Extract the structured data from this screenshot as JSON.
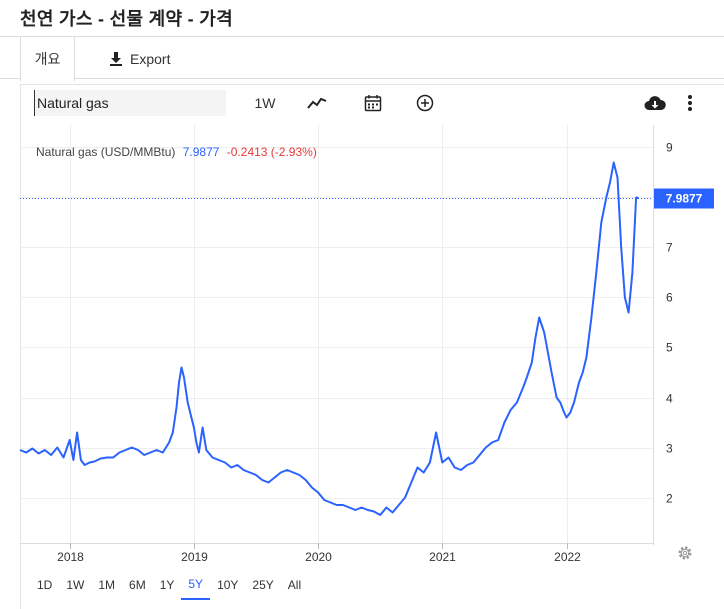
{
  "page": {
    "title": "천연 가스 - 선물 계약 - 가격"
  },
  "tabs": {
    "overview": "개요",
    "export": "Export"
  },
  "toolbar": {
    "search_value": "Natural gas",
    "interval": "1W",
    "icons": [
      "line-chart-icon",
      "calendar-icon",
      "add-circle-icon",
      "cloud-download-icon",
      "more-vert-icon"
    ]
  },
  "legend": {
    "name": "Natural gas (USD/MMBtu)",
    "last": "7.9877",
    "change": "-0.2413 (-2.93%)"
  },
  "ranges": [
    "1D",
    "1W",
    "1M",
    "6M",
    "1Y",
    "5Y",
    "10Y",
    "25Y",
    "All"
  ],
  "active_range": "5Y",
  "colors": {
    "line": "#2962ff",
    "negative": "#e53935",
    "badge": "#2962ff"
  },
  "chart_data": {
    "type": "line",
    "series": [
      {
        "name": "Natural gas (USD/MMBtu)",
        "x": [
          2017.6,
          2017.65,
          2017.7,
          2017.75,
          2017.8,
          2017.85,
          2017.9,
          2017.95,
          2018.0,
          2018.03,
          2018.06,
          2018.09,
          2018.12,
          2018.16,
          2018.2,
          2018.25,
          2018.3,
          2018.35,
          2018.4,
          2018.45,
          2018.5,
          2018.55,
          2018.6,
          2018.65,
          2018.7,
          2018.75,
          2018.8,
          2018.83,
          2018.86,
          2018.88,
          2018.9,
          2018.92,
          2018.95,
          2018.98,
          2019.0,
          2019.02,
          2019.04,
          2019.07,
          2019.1,
          2019.15,
          2019.2,
          2019.25,
          2019.3,
          2019.35,
          2019.4,
          2019.45,
          2019.5,
          2019.55,
          2019.6,
          2019.65,
          2019.7,
          2019.75,
          2019.8,
          2019.85,
          2019.9,
          2019.95,
          2020.0,
          2020.05,
          2020.1,
          2020.15,
          2020.2,
          2020.25,
          2020.3,
          2020.35,
          2020.4,
          2020.45,
          2020.5,
          2020.55,
          2020.6,
          2020.65,
          2020.7,
          2020.75,
          2020.8,
          2020.85,
          2020.9,
          2020.95,
          2021.0,
          2021.05,
          2021.1,
          2021.15,
          2021.2,
          2021.25,
          2021.3,
          2021.35,
          2021.4,
          2021.45,
          2021.5,
          2021.55,
          2021.6,
          2021.65,
          2021.68,
          2021.72,
          2021.75,
          2021.78,
          2021.82,
          2021.85,
          2021.88,
          2021.92,
          2021.95,
          2021.98,
          2022.0,
          2022.03,
          2022.06,
          2022.1,
          2022.13,
          2022.16,
          2022.2,
          2022.24,
          2022.28,
          2022.32,
          2022.35,
          2022.38,
          2022.41,
          2022.44,
          2022.47,
          2022.5,
          2022.53,
          2022.56,
          2022.58
        ],
        "values": [
          2.95,
          2.9,
          2.98,
          2.88,
          2.95,
          2.85,
          3.0,
          2.8,
          3.15,
          2.75,
          3.3,
          2.75,
          2.65,
          2.7,
          2.72,
          2.78,
          2.8,
          2.8,
          2.9,
          2.95,
          3.0,
          2.95,
          2.85,
          2.9,
          2.95,
          2.9,
          3.1,
          3.3,
          3.8,
          4.3,
          4.6,
          4.4,
          3.9,
          3.6,
          3.4,
          3.1,
          2.9,
          3.4,
          2.95,
          2.8,
          2.75,
          2.7,
          2.6,
          2.65,
          2.55,
          2.5,
          2.45,
          2.35,
          2.3,
          2.4,
          2.5,
          2.55,
          2.5,
          2.45,
          2.35,
          2.2,
          2.1,
          1.95,
          1.9,
          1.85,
          1.85,
          1.8,
          1.75,
          1.8,
          1.75,
          1.72,
          1.65,
          1.8,
          1.7,
          1.85,
          2.0,
          2.3,
          2.6,
          2.5,
          2.7,
          3.3,
          2.7,
          2.8,
          2.6,
          2.55,
          2.65,
          2.7,
          2.85,
          3.0,
          3.1,
          3.15,
          3.5,
          3.75,
          3.9,
          4.2,
          4.4,
          4.7,
          5.2,
          5.6,
          5.3,
          4.9,
          4.5,
          4.0,
          3.9,
          3.7,
          3.6,
          3.7,
          3.9,
          4.3,
          4.5,
          4.8,
          5.6,
          6.5,
          7.5,
          8.0,
          8.3,
          8.7,
          8.4,
          7.0,
          6.0,
          5.7,
          6.5,
          8.0,
          7.9877
        ]
      }
    ],
    "xticks": [
      "2018",
      "2019",
      "2020",
      "2021",
      "2022"
    ],
    "xtick_values": [
      2018.0,
      2019.0,
      2020.0,
      2021.0,
      2022.0
    ],
    "xlim": [
      2017.6,
      2022.68
    ],
    "yticks": [
      2,
      3,
      4,
      5,
      6,
      7,
      8,
      9
    ],
    "ylim": [
      1.05,
      9.45
    ],
    "grid": true,
    "last_value_line": 7.9877
  }
}
